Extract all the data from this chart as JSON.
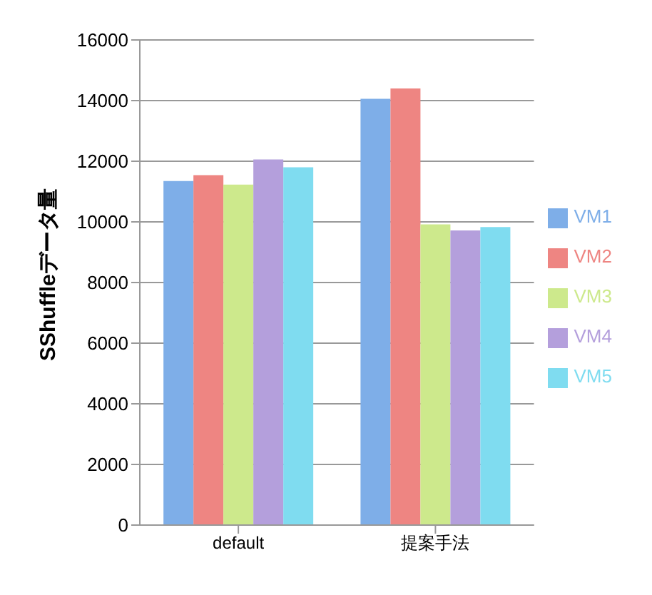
{
  "chart_data": {
    "type": "bar",
    "ylabel": "SShuffleデータ量",
    "categories": [
      "default",
      "提案手法"
    ],
    "series": [
      {
        "name": "VM1",
        "color": "#7eaee8",
        "values": [
          11350,
          14060
        ]
      },
      {
        "name": "VM2",
        "color": "#ee8582",
        "values": [
          11540,
          14400
        ]
      },
      {
        "name": "VM3",
        "color": "#cde98c",
        "values": [
          11230,
          9920
        ]
      },
      {
        "name": "VM4",
        "color": "#b49fdc",
        "values": [
          12060,
          9720
        ]
      },
      {
        "name": "VM5",
        "color": "#7fdcf0",
        "values": [
          11800,
          9830
        ]
      }
    ],
    "ylim": [
      0,
      16000
    ],
    "yticks": [
      0,
      2000,
      4000,
      6000,
      8000,
      10000,
      12000,
      14000,
      16000
    ],
    "grid": "y",
    "legend": "right"
  }
}
